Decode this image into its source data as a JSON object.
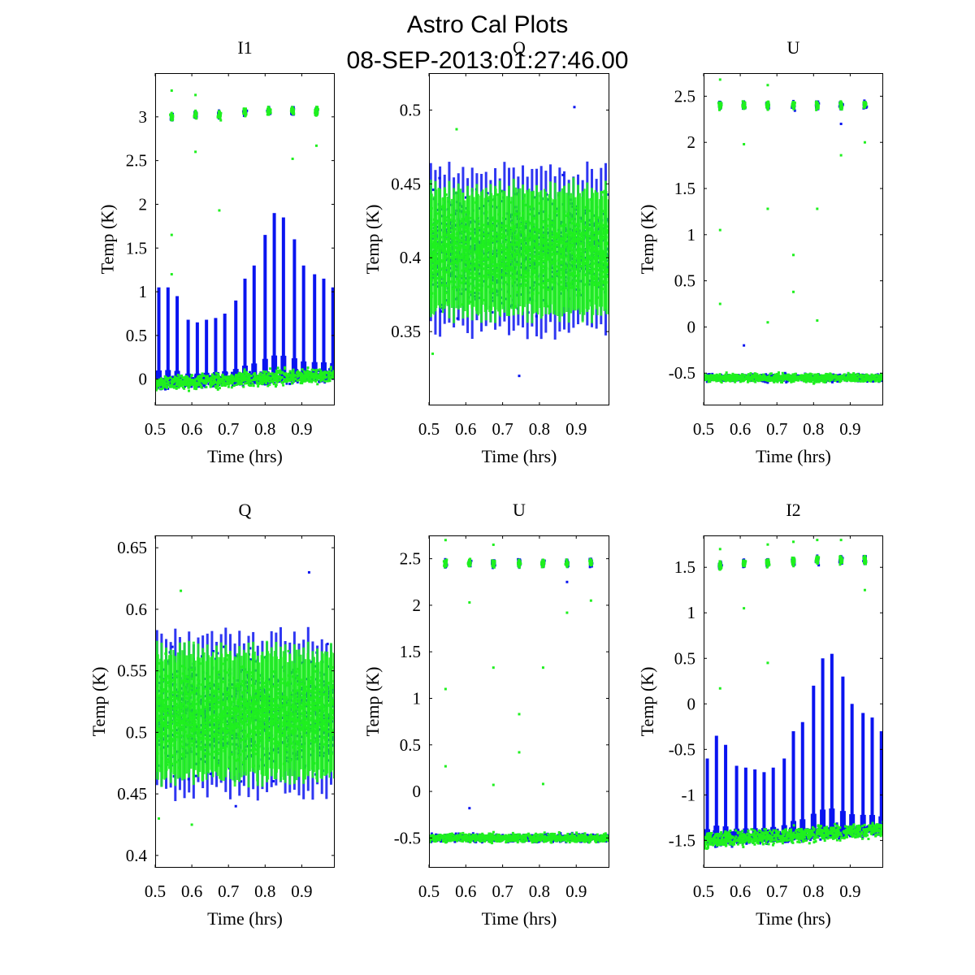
{
  "figure": {
    "title": "Astro Cal Plots",
    "subtitle": "08-SEP-2013:01:27:46.00"
  },
  "colors": {
    "series_a": "#0a14f0",
    "series_b": "#1ff01f",
    "background": "#ffffff",
    "axes": "#000000"
  },
  "chart_data": [
    {
      "type": "scatter",
      "title": "I1",
      "xlabel": "Time (hrs)",
      "ylabel": "Temp (K)",
      "xlim": [
        0.5,
        0.99
      ],
      "ylim": [
        -0.3,
        3.5
      ],
      "xticks": [
        0.5,
        0.6,
        0.7,
        0.8,
        0.9
      ],
      "yticks": [
        0,
        0.5,
        1,
        1.5,
        2,
        2.5,
        3
      ],
      "ytick_labels": [
        "0",
        "0.5",
        "1",
        "1.5",
        "2",
        "2.5",
        "3"
      ],
      "profile": "spiky",
      "series": [
        {
          "color": "blue",
          "baseline": [
            -0.05,
            0.05
          ],
          "band": 0.12,
          "spike_x": [
            0.51,
            0.535,
            0.56,
            0.59,
            0.615,
            0.64,
            0.665,
            0.69,
            0.72,
            0.745,
            0.77,
            0.8,
            0.825,
            0.85,
            0.88,
            0.905,
            0.935,
            0.96,
            0.985
          ],
          "spike_top": [
            1.05,
            1.05,
            0.95,
            0.68,
            0.65,
            0.68,
            0.7,
            0.75,
            0.9,
            1.15,
            1.3,
            1.65,
            1.9,
            1.85,
            1.6,
            1.3,
            1.2,
            1.15,
            1.05
          ],
          "clusters": {
            "x": [
              0.545,
              0.61,
              0.675,
              0.745,
              0.81,
              0.875,
              0.94
            ],
            "y": [
              3.0,
              3.02,
              3.02,
              3.05,
              3.07,
              3.07,
              3.06
            ]
          }
        },
        {
          "color": "green",
          "baseline": [
            -0.05,
            0.05
          ],
          "band": 0.15,
          "clusters": {
            "x": [
              0.545,
              0.61,
              0.675,
              0.745,
              0.81,
              0.875,
              0.94
            ],
            "y": [
              3.0,
              3.02,
              3.02,
              3.05,
              3.07,
              3.07,
              3.06
            ]
          },
          "outliers": {
            "x": [
              0.545,
              0.545,
              0.61,
              0.675,
              0.545,
              0.875,
              0.94,
              0.61
            ],
            "y": [
              3.3,
              1.65,
              2.6,
              1.93,
              1.2,
              2.52,
              2.67,
              3.25
            ]
          }
        }
      ]
    },
    {
      "type": "scatter",
      "title": "Q",
      "xlabel": "Time (hrs)",
      "ylabel": "Temp (K)",
      "xlim": [
        0.5,
        0.99
      ],
      "ylim": [
        0.3,
        0.525
      ],
      "xticks": [
        0.5,
        0.6,
        0.7,
        0.8,
        0.9
      ],
      "yticks": [
        0.35,
        0.4,
        0.45,
        0.5
      ],
      "ytick_labels": [
        "0.35",
        "0.4",
        "0.45",
        "0.5"
      ],
      "profile": "dense",
      "series": [
        {
          "color": "blue",
          "center": 0.405,
          "spread": 0.055,
          "outliers": {
            "x": [
              0.895,
              0.745
            ],
            "y": [
              0.502,
              0.32
            ]
          }
        },
        {
          "color": "green",
          "center": 0.405,
          "spread": 0.045,
          "outliers": {
            "x": [
              0.575,
              0.51
            ],
            "y": [
              0.487,
              0.335
            ]
          }
        }
      ]
    },
    {
      "type": "scatter",
      "title": "U",
      "xlabel": "Time (hrs)",
      "ylabel": "Temp (K)",
      "xlim": [
        0.5,
        0.99
      ],
      "ylim": [
        -0.85,
        2.75
      ],
      "xticks": [
        0.5,
        0.6,
        0.7,
        0.8,
        0.9
      ],
      "yticks": [
        -0.5,
        0,
        0.5,
        1,
        1.5,
        2,
        2.5
      ],
      "ytick_labels": [
        "-0.5",
        "0",
        "0.5",
        "1",
        "1.5",
        "2",
        "2.5"
      ],
      "profile": "flat",
      "series": [
        {
          "color": "blue",
          "baseline": [
            -0.55,
            -0.55
          ],
          "band": 0.07,
          "clusters": {
            "x": [
              0.545,
              0.61,
              0.675,
              0.745,
              0.81,
              0.875,
              0.94
            ],
            "y": [
              2.4,
              2.4,
              2.4,
              2.4,
              2.4,
              2.4,
              2.41
            ]
          },
          "outliers": {
            "x": [
              0.61,
              0.875
            ],
            "y": [
              -0.2,
              2.2
            ]
          }
        },
        {
          "color": "green",
          "baseline": [
            -0.55,
            -0.55
          ],
          "band": 0.08,
          "clusters": {
            "x": [
              0.545,
              0.61,
              0.675,
              0.745,
              0.81,
              0.875,
              0.94
            ],
            "y": [
              2.4,
              2.4,
              2.4,
              2.4,
              2.4,
              2.4,
              2.41
            ]
          },
          "outliers": {
            "x": [
              0.545,
              0.545,
              0.61,
              0.675,
              0.675,
              0.745,
              0.745,
              0.81,
              0.81,
              0.875,
              0.94,
              0.545,
              0.675
            ],
            "y": [
              1.05,
              0.25,
              1.98,
              1.28,
              0.05,
              0.78,
              0.38,
              1.28,
              0.07,
              1.86,
              2.0,
              2.68,
              2.62
            ]
          }
        }
      ]
    },
    {
      "type": "scatter",
      "title": "Q",
      "xlabel": "Time (hrs)",
      "ylabel": "Temp (K)",
      "xlim": [
        0.5,
        0.99
      ],
      "ylim": [
        0.39,
        0.66
      ],
      "xticks": [
        0.5,
        0.6,
        0.7,
        0.8,
        0.9
      ],
      "yticks": [
        0.4,
        0.45,
        0.5,
        0.55,
        0.6,
        0.65
      ],
      "ytick_labels": [
        "0.4",
        "0.45",
        "0.5",
        "0.55",
        "0.6",
        "0.65"
      ],
      "profile": "dense",
      "series": [
        {
          "color": "blue",
          "center": 0.515,
          "spread": 0.065,
          "outliers": {
            "x": [
              0.92,
              0.72
            ],
            "y": [
              0.63,
              0.44
            ]
          }
        },
        {
          "color": "green",
          "center": 0.515,
          "spread": 0.055,
          "outliers": {
            "x": [
              0.57,
              0.51,
              0.6
            ],
            "y": [
              0.615,
              0.43,
              0.425
            ]
          }
        }
      ]
    },
    {
      "type": "scatter",
      "title": "U",
      "xlabel": "Time (hrs)",
      "ylabel": "Temp (K)",
      "xlim": [
        0.5,
        0.99
      ],
      "ylim": [
        -0.82,
        2.75
      ],
      "xticks": [
        0.5,
        0.6,
        0.7,
        0.8,
        0.9
      ],
      "yticks": [
        -0.5,
        0,
        0.5,
        1,
        1.5,
        2,
        2.5
      ],
      "ytick_labels": [
        "-0.5",
        "0",
        "0.5",
        "1",
        "1.5",
        "2",
        "2.5"
      ],
      "profile": "flat",
      "series": [
        {
          "color": "blue",
          "baseline": [
            -0.5,
            -0.5
          ],
          "band": 0.07,
          "clusters": {
            "x": [
              0.545,
              0.61,
              0.675,
              0.745,
              0.81,
              0.875,
              0.94
            ],
            "y": [
              2.45,
              2.45,
              2.45,
              2.45,
              2.45,
              2.45,
              2.46
            ]
          },
          "outliers": {
            "x": [
              0.61,
              0.875
            ],
            "y": [
              -0.18,
              2.25
            ]
          }
        },
        {
          "color": "green",
          "baseline": [
            -0.5,
            -0.5
          ],
          "band": 0.08,
          "clusters": {
            "x": [
              0.545,
              0.61,
              0.675,
              0.745,
              0.81,
              0.875,
              0.94
            ],
            "y": [
              2.45,
              2.45,
              2.45,
              2.45,
              2.45,
              2.45,
              2.46
            ]
          },
          "outliers": {
            "x": [
              0.545,
              0.545,
              0.61,
              0.675,
              0.675,
              0.745,
              0.745,
              0.81,
              0.81,
              0.875,
              0.94,
              0.545,
              0.675
            ],
            "y": [
              1.1,
              0.27,
              2.03,
              1.33,
              0.07,
              0.83,
              0.42,
              1.33,
              0.08,
              1.92,
              2.05,
              2.7,
              2.65
            ]
          }
        }
      ]
    },
    {
      "type": "scatter",
      "title": "I2",
      "xlabel": "Time (hrs)",
      "ylabel": "Temp (K)",
      "xlim": [
        0.5,
        0.99
      ],
      "ylim": [
        -1.8,
        1.85
      ],
      "xticks": [
        0.5,
        0.6,
        0.7,
        0.8,
        0.9
      ],
      "yticks": [
        -1.5,
        -1,
        -0.5,
        0,
        0.5,
        1,
        1.5
      ],
      "ytick_labels": [
        "-1.5",
        "-1",
        "-0.5",
        "0",
        "0.5",
        "1",
        "1.5"
      ],
      "profile": "spiky",
      "series": [
        {
          "color": "blue",
          "baseline": [
            -1.5,
            -1.38
          ],
          "band": 0.12,
          "spike_x": [
            0.51,
            0.535,
            0.56,
            0.59,
            0.615,
            0.64,
            0.665,
            0.69,
            0.72,
            0.745,
            0.77,
            0.8,
            0.825,
            0.85,
            0.88,
            0.905,
            0.935,
            0.96,
            0.985
          ],
          "spike_top": [
            -0.6,
            -0.35,
            -0.45,
            -0.68,
            -0.7,
            -0.72,
            -0.75,
            -0.7,
            -0.6,
            -0.3,
            -0.2,
            0.2,
            0.5,
            0.55,
            0.3,
            0.0,
            -0.1,
            -0.15,
            -0.3
          ],
          "clusters": {
            "x": [
              0.545,
              0.61,
              0.675,
              0.745,
              0.81,
              0.875,
              0.94
            ],
            "y": [
              1.52,
              1.54,
              1.55,
              1.56,
              1.58,
              1.58,
              1.58
            ]
          }
        },
        {
          "color": "green",
          "baseline": [
            -1.5,
            -1.38
          ],
          "band": 0.15,
          "clusters": {
            "x": [
              0.545,
              0.61,
              0.675,
              0.745,
              0.81,
              0.875,
              0.94
            ],
            "y": [
              1.52,
              1.54,
              1.55,
              1.56,
              1.58,
              1.58,
              1.58
            ]
          },
          "outliers": {
            "x": [
              0.545,
              0.545,
              0.61,
              0.675,
              0.675,
              0.875,
              0.94,
              0.745,
              0.81
            ],
            "y": [
              1.7,
              0.17,
              1.05,
              0.45,
              1.75,
              1.8,
              1.25,
              1.78,
              1.8
            ]
          }
        }
      ]
    }
  ]
}
